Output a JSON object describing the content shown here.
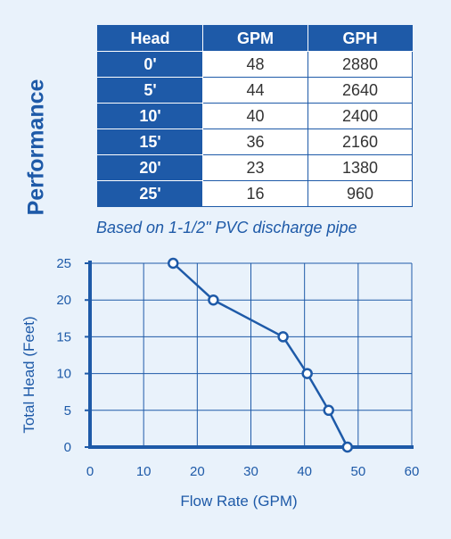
{
  "side_title": "Performance",
  "table": {
    "headers": [
      "Head",
      "GPM",
      "GPH"
    ],
    "rows": [
      [
        "0'",
        "48",
        "2880"
      ],
      [
        "5'",
        "44",
        "2640"
      ],
      [
        "10'",
        "40",
        "2400"
      ],
      [
        "15'",
        "36",
        "2160"
      ],
      [
        "20'",
        "23",
        "1380"
      ],
      [
        "25'",
        "16",
        "960"
      ]
    ]
  },
  "note": "Based on 1-1/2\" PVC discharge pipe",
  "colors": {
    "accent": "#1e5aa8",
    "background": "#e9f2fb"
  },
  "chart_data": {
    "type": "line",
    "xlabel": "Flow Rate (GPM)",
    "ylabel": "Total Head (Feet)",
    "xlim": [
      0,
      60
    ],
    "ylim": [
      0,
      25
    ],
    "xticks": [
      0,
      10,
      20,
      30,
      40,
      50,
      60
    ],
    "yticks": [
      0,
      5,
      10,
      15,
      20,
      25
    ],
    "grid": true,
    "series": [
      {
        "points": [
          {
            "x": 15.5,
            "y": 25
          },
          {
            "x": 23,
            "y": 20
          },
          {
            "x": 36,
            "y": 15
          },
          {
            "x": 40.5,
            "y": 10
          },
          {
            "x": 44.5,
            "y": 5
          },
          {
            "x": 48,
            "y": 0
          }
        ]
      }
    ]
  }
}
